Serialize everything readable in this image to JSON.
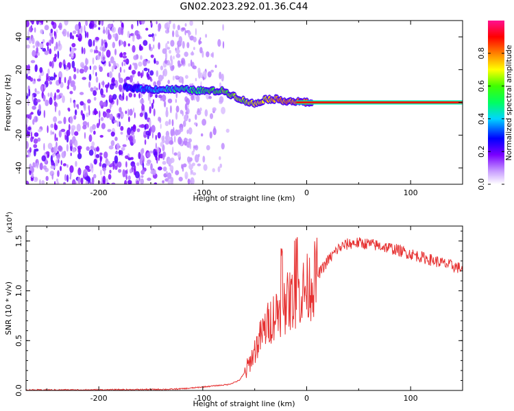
{
  "title": "GN02.2023.292.01.36.C44",
  "chart_data": [
    {
      "type": "heatmap",
      "xlabel": "Height of straight line (km)",
      "ylabel": "Frequency (Hz)",
      "xlim": [
        -270,
        150
      ],
      "ylim": [
        -50,
        50
      ],
      "xticks": [
        -200,
        -100,
        0,
        100
      ],
      "yticks": [
        -40,
        -20,
        0,
        20,
        40
      ],
      "colorbar": {
        "label": "Normalized spectral amplitude",
        "range": [
          0.0,
          1.0
        ],
        "ticks": [
          0.0,
          0.2,
          0.4,
          0.6,
          0.8
        ],
        "colormap": "white-violet-blue-cyan-green-yellow-red"
      },
      "features": [
        {
          "name": "broadband noise",
          "x_range": [
            -270,
            -100
          ],
          "y_range": [
            -50,
            50
          ],
          "amplitude": 0.1
        },
        {
          "name": "main track",
          "points": [
            [
              -170,
              9
            ],
            [
              -150,
              8
            ],
            [
              -120,
              8
            ],
            [
              -100,
              7
            ],
            [
              -80,
              7
            ],
            [
              -70,
              4
            ],
            [
              -60,
              1
            ],
            [
              -50,
              -1
            ],
            [
              -40,
              2
            ],
            [
              -30,
              2
            ],
            [
              -20,
              1
            ],
            [
              -10,
              0.5
            ],
            [
              0,
              0
            ],
            [
              150,
              0
            ]
          ]
        },
        {
          "name": "zero-frequency line",
          "x_range": [
            -10,
            150
          ],
          "y": 0,
          "amplitude": 1.0
        }
      ]
    },
    {
      "type": "line",
      "xlabel": "Height of straight line (km)",
      "ylabel": "SNR (10 * v/v)",
      "yscale_label": "(x10",
      "yscale_exp": "4",
      "yscale_close": ")",
      "xlim": [
        -270,
        150
      ],
      "ylim": [
        0,
        1.65
      ],
      "xticks": [
        -200,
        -100,
        0,
        100
      ],
      "yticks": [
        0.0,
        0.5,
        1.0,
        1.5
      ],
      "color": "#e63030",
      "series": [
        {
          "x": [
            -270,
            -250,
            -230,
            -210,
            -190,
            -170,
            -150,
            -130,
            -115,
            -105,
            -95,
            -85,
            -75,
            -65,
            -58,
            -52,
            -46,
            -40,
            -34,
            -28,
            -22,
            -16,
            -10,
            -5,
            0,
            5,
            10,
            15,
            20,
            25,
            30,
            35,
            40,
            45,
            50,
            60,
            70,
            80,
            90,
            100,
            110,
            120,
            130,
            140,
            150
          ],
          "y": [
            0.005,
            0.005,
            0.006,
            0.006,
            0.007,
            0.008,
            0.01,
            0.012,
            0.02,
            0.03,
            0.04,
            0.05,
            0.06,
            0.1,
            0.2,
            0.35,
            0.5,
            0.62,
            0.72,
            0.8,
            0.85,
            0.9,
            0.95,
            0.98,
            1.02,
            1.08,
            1.15,
            1.22,
            1.3,
            1.36,
            1.42,
            1.45,
            1.47,
            1.48,
            1.48,
            1.47,
            1.45,
            1.43,
            1.4,
            1.37,
            1.34,
            1.31,
            1.28,
            1.25,
            1.22
          ]
        }
      ]
    }
  ]
}
